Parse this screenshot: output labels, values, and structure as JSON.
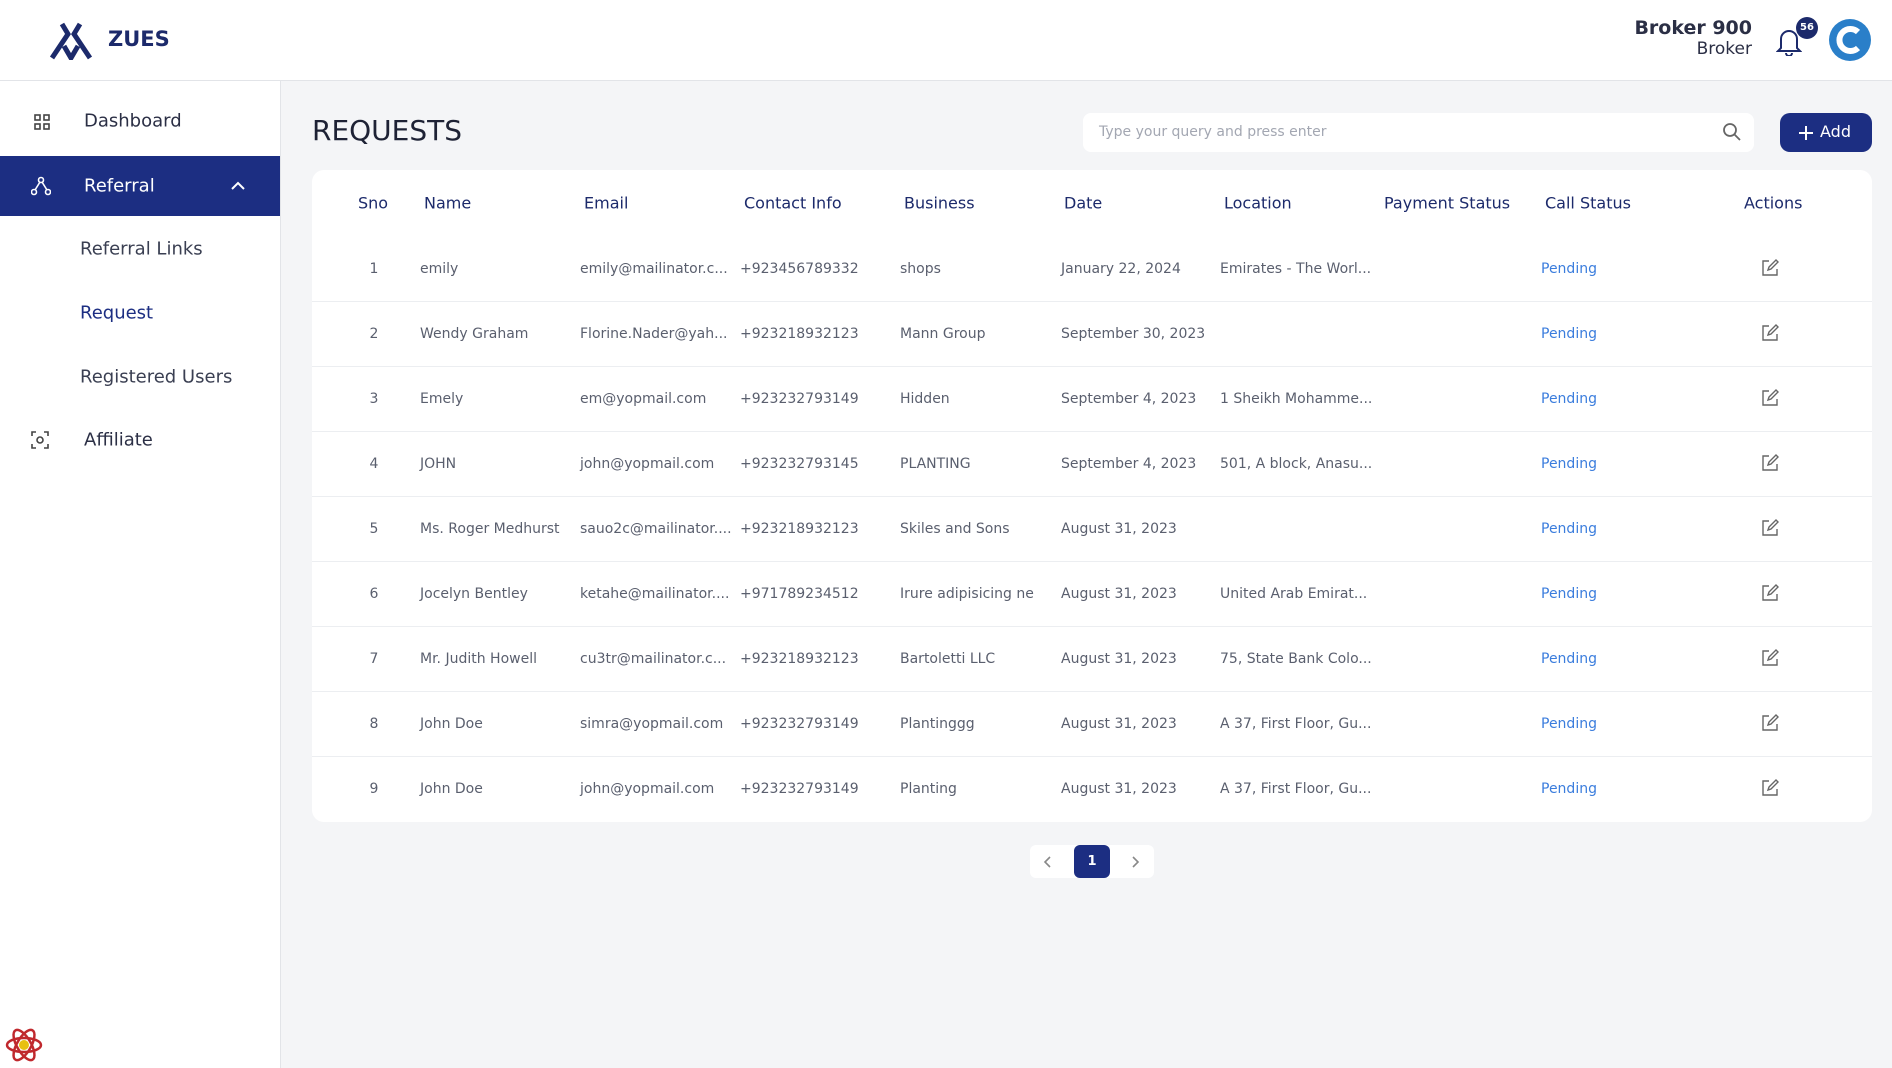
{
  "header": {
    "brand": "ZUES",
    "user_name": "Broker 900",
    "user_role": "Broker",
    "notifications": "56"
  },
  "sidebar": {
    "items": [
      {
        "label": "Dashboard"
      },
      {
        "label": "Referral",
        "children": [
          "Referral Links",
          "Request",
          "Registered Users"
        ]
      },
      {
        "label": "Affiliate"
      }
    ]
  },
  "page": {
    "title": "REQUESTS",
    "search_placeholder": "Type your query and press enter",
    "add_button": "Add"
  },
  "table": {
    "columns": [
      "Sno",
      "Name",
      "Email",
      "Contact Info",
      "Business",
      "Date",
      "Location",
      "Payment Status",
      "Call Status",
      "Actions"
    ],
    "rows": [
      {
        "sno": "1",
        "name": "emily",
        "email": "emily@mailinator.c...",
        "contact": "+923456789332",
        "business": "shops",
        "date": "January 22, 2024",
        "location": "Emirates - The Worl...",
        "call_status": "Pending"
      },
      {
        "sno": "2",
        "name": "Wendy Graham",
        "email": "Florine.Nader@yah...",
        "contact": "+923218932123",
        "business": "Mann Group",
        "date": "September 30, 2023",
        "call_status": "Pending"
      },
      {
        "sno": "3",
        "name": "Emely",
        "email": "em@yopmail.com",
        "contact": "+923232793149",
        "business": "Hidden",
        "date": "September 4, 2023",
        "location": "1 Sheikh Mohamme...",
        "call_status": "Pending"
      },
      {
        "sno": "4",
        "name": "JOHN",
        "email": "john@yopmail.com",
        "contact": "+923232793145",
        "business": "PLANTING",
        "date": "September 4, 2023",
        "location": "501, A block, Anasu...",
        "call_status": "Pending"
      },
      {
        "sno": "5",
        "name": "Ms. Roger Medhurst",
        "email": "sauo2c@mailinator....",
        "contact": "+923218932123",
        "business": "Skiles and Sons",
        "date": "August 31, 2023",
        "call_status": "Pending"
      },
      {
        "sno": "6",
        "name": "Jocelyn Bentley",
        "email": "ketahe@mailinator....",
        "contact": "+971789234512",
        "business": "Irure adipisicing ne",
        "date": "August 31, 2023",
        "location": "United Arab Emirat...",
        "call_status": "Pending"
      },
      {
        "sno": "7",
        "name": "Mr. Judith Howell",
        "email": "cu3tr@mailinator.c...",
        "contact": "+923218932123",
        "business": "Bartoletti LLC",
        "date": "August 31, 2023",
        "location": "75, State Bank Colo...",
        "call_status": "Pending"
      },
      {
        "sno": "8",
        "name": "John Doe",
        "email": "simra@yopmail.com",
        "contact": "+923232793149",
        "business": "Plantinggg",
        "date": "August 31, 2023",
        "location": "A 37, First Floor, Gu...",
        "call_status": "Pending"
      },
      {
        "sno": "9",
        "name": "John Doe",
        "email": "john@yopmail.com",
        "contact": "+923232793149",
        "business": "Planting",
        "date": "August 31, 2023",
        "location": "A 37, First Floor, Gu...",
        "call_status": "Pending"
      }
    ]
  },
  "pagination": {
    "current": "1"
  }
}
